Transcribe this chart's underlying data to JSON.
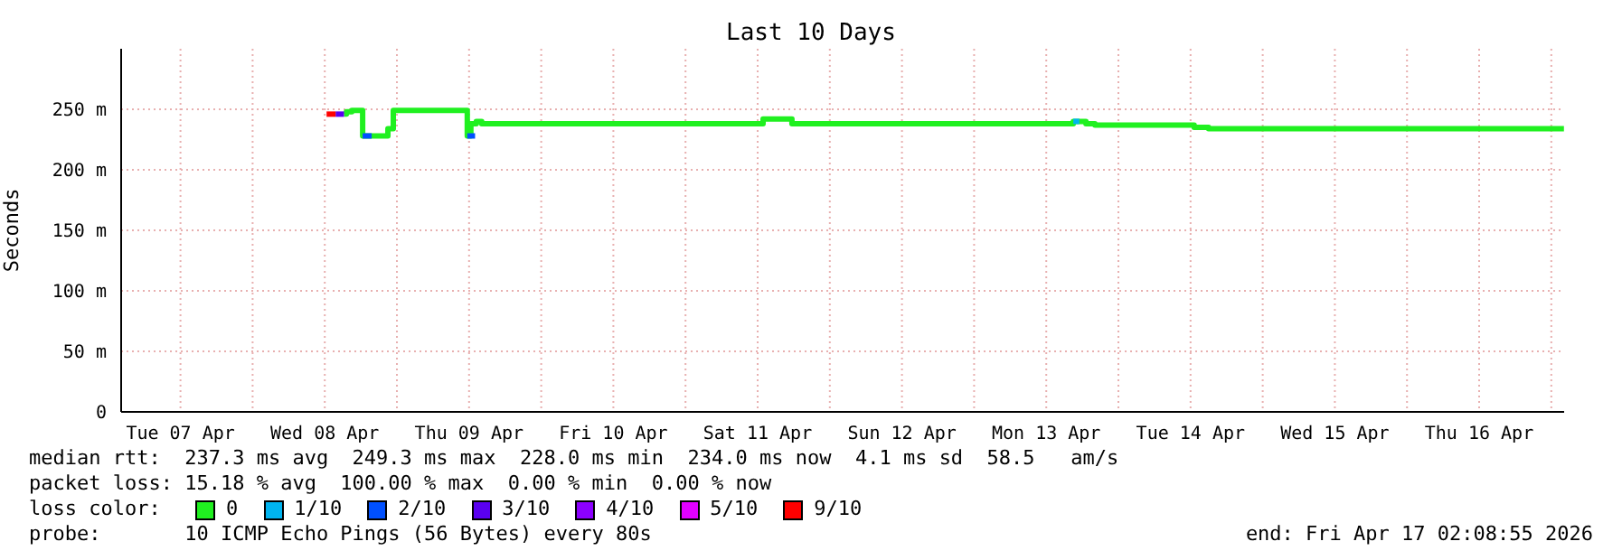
{
  "chart_data": {
    "type": "step",
    "title": "Last 10 Days",
    "ylabel": "Seconds",
    "legend_title": "loss color:",
    "legend": "bottom",
    "grid": true,
    "marker": "none",
    "line_style": "solid",
    "xlim": [
      "2026-04-07T02:08",
      "2026-04-17T02:08"
    ],
    "xticks": [
      {
        "value": "2026-04-07T12:00",
        "label": "Tue 07 Apr"
      },
      {
        "value": "2026-04-08T00:00",
        "label": null
      },
      {
        "value": "2026-04-08T12:00",
        "label": "Wed 08 Apr"
      },
      {
        "value": "2026-04-09T00:00",
        "label": null
      },
      {
        "value": "2026-04-09T12:00",
        "label": "Thu 09 Apr"
      },
      {
        "value": "2026-04-10T00:00",
        "label": null
      },
      {
        "value": "2026-04-10T12:00",
        "label": "Fri 10 Apr"
      },
      {
        "value": "2026-04-11T00:00",
        "label": null
      },
      {
        "value": "2026-04-11T12:00",
        "label": "Sat 11 Apr"
      },
      {
        "value": "2026-04-12T00:00",
        "label": null
      },
      {
        "value": "2026-04-12T12:00",
        "label": "Sun 12 Apr"
      },
      {
        "value": "2026-04-13T00:00",
        "label": null
      },
      {
        "value": "2026-04-13T12:00",
        "label": "Mon 13 Apr"
      },
      {
        "value": "2026-04-14T00:00",
        "label": null
      },
      {
        "value": "2026-04-14T12:00",
        "label": "Tue 14 Apr"
      },
      {
        "value": "2026-04-15T00:00",
        "label": null
      },
      {
        "value": "2026-04-15T12:00",
        "label": "Wed 15 Apr"
      },
      {
        "value": "2026-04-16T00:00",
        "label": null
      },
      {
        "value": "2026-04-16T12:00",
        "label": "Thu 16 Apr"
      },
      {
        "value": "2026-04-17T00:00",
        "label": null
      }
    ],
    "ylim": [
      0,
      300
    ],
    "yticks": [
      0,
      {
        "value": 50,
        "label": "50 m"
      },
      {
        "value": 100,
        "label": "100 m"
      },
      {
        "value": 150,
        "label": "150 m"
      },
      {
        "value": 200,
        "label": "200 m"
      },
      {
        "value": 250,
        "label": "250 m"
      }
    ],
    "series": [
      {
        "name": "0",
        "color": "#20f020",
        "x": [
          "2026-04-08T15:12",
          "2026-04-08T15:36",
          "2026-04-08T16:30",
          "2026-04-08T18:18",
          "2026-04-08T22:30",
          "2026-04-08T23:24",
          "2026-04-09T11:42",
          "2026-04-09T12:18",
          "2026-04-09T13:12",
          "2026-04-09T14:06",
          "2026-04-11T12:54",
          "2026-04-11T17:42",
          "2026-04-13T16:30",
          "2026-04-13T18:36",
          "2026-04-13T20:06",
          "2026-04-14T12:36",
          "2026-04-14T15:00",
          "2026-04-17T02:06"
        ],
        "values": [
          246,
          248,
          249,
          228,
          234,
          249,
          228,
          238,
          240,
          238,
          242,
          238,
          240,
          238,
          237,
          235,
          234,
          234
        ]
      },
      {
        "name": "1/10",
        "color": "#00b4f0",
        "x": [
          "2026-04-13T16:30",
          "2026-04-13T17:30"
        ],
        "values": [
          240,
          240
        ]
      },
      {
        "name": "2/10",
        "color": "#0050ff",
        "x": [
          "2026-04-08T18:18",
          "2026-04-08T19:48",
          "2026-04-09T11:00",
          "2026-04-09T11:42",
          "2026-04-09T13:00"
        ],
        "values": [
          228,
          228,
          null,
          228,
          228
        ]
      },
      {
        "name": "3/10",
        "color": "#5a00f0",
        "x": [
          "2026-04-08T13:48",
          "2026-04-08T15:12"
        ],
        "values": [
          246,
          246
        ]
      },
      {
        "name": "4/10",
        "color": "#8c00ff"
      },
      {
        "name": "5/10",
        "color": "#e000ff"
      },
      {
        "name": "9/10",
        "color": "#ff0000",
        "x": [
          "2026-04-08T12:18",
          "2026-04-08T13:48"
        ],
        "values": [
          246,
          246
        ]
      }
    ],
    "annotations": [
      "median rtt:  237.3 ms avg  249.3 ms max  228.0 ms min  234.0 ms now  4.1 ms sd  58.5   am/s",
      "packet loss: 15.18 % avg  100.00 % max  0.00 % min  0.00 % now",
      "probe:       10 ICMP Echo Pings (56 Bytes) every 80s",
      "end: Fri Apr 17 02:08:55 2026"
    ]
  }
}
